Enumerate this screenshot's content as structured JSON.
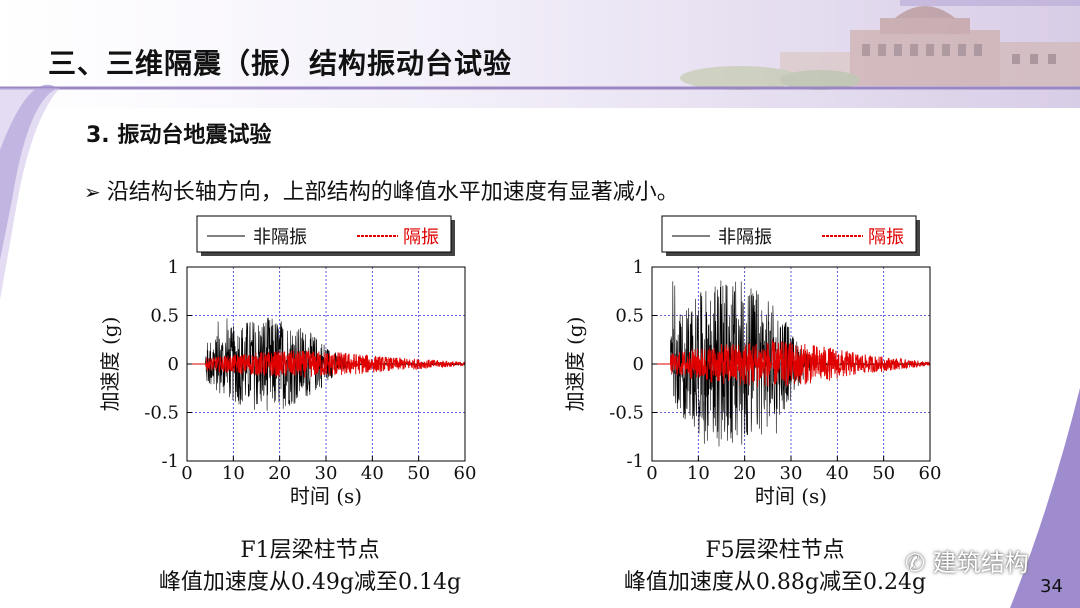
{
  "slide": {
    "title": "三、三维隔震（振）结构振动台试验",
    "section": "3. 振动台地震试验",
    "bullet": "沿结构长轴方向，上部结构的峰值水平加速度有显著减小。",
    "page_number": "34",
    "watermark": "建筑结构"
  },
  "colors": {
    "non_isolated": "#000000",
    "isolated": "#e00000",
    "grid": "#3333cc",
    "accent": "#9a86c2"
  },
  "chart_data": [
    {
      "type": "line",
      "id": "F1",
      "xlabel": "时间 (s)",
      "ylabel": "加速度 (g)",
      "xlim": [
        0,
        60
      ],
      "ylim": [
        -1,
        1
      ],
      "xticks": [
        "0",
        "10",
        "20",
        "30",
        "40",
        "50",
        "60"
      ],
      "yticks": [
        "1",
        "0.5",
        "0",
        "-0.5",
        "-1"
      ],
      "grid": true,
      "legend_position": "top",
      "legend": [
        "非隔振",
        "隔振"
      ],
      "series": [
        {
          "name": "非隔振",
          "peak": 0.49,
          "start": 4,
          "strong_end": 30,
          "end": 35
        },
        {
          "name": "隔振",
          "peak": 0.14,
          "start": 4,
          "strong_end": 45,
          "end": 60
        }
      ],
      "caption_line1": "F1层梁柱节点",
      "caption_line2": "峰值加速度从0.49g减至0.14g"
    },
    {
      "type": "line",
      "id": "F5",
      "xlabel": "时间 (s)",
      "ylabel": "加速度 (g)",
      "xlim": [
        0,
        60
      ],
      "ylim": [
        -1,
        1
      ],
      "xticks": [
        "0",
        "10",
        "20",
        "30",
        "40",
        "50",
        "60"
      ],
      "yticks": [
        "1",
        "0.5",
        "0",
        "-0.5",
        "-1"
      ],
      "grid": true,
      "legend_position": "top",
      "legend": [
        "非隔振",
        "隔振"
      ],
      "series": [
        {
          "name": "非隔振",
          "peak": 0.88,
          "start": 4,
          "strong_end": 30,
          "end": 35
        },
        {
          "name": "隔振",
          "peak": 0.24,
          "start": 4,
          "strong_end": 45,
          "end": 60
        }
      ],
      "caption_line1": "F5层梁柱节点",
      "caption_line2": "峰值加速度从0.88g减至0.24g"
    }
  ]
}
